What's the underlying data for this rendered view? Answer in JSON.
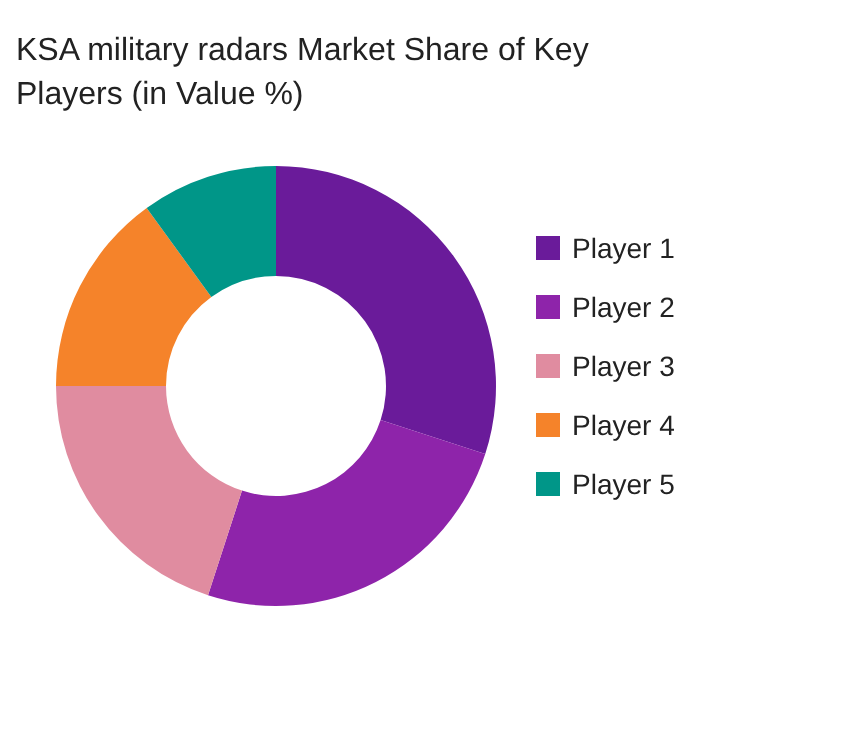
{
  "chart_data": {
    "type": "donut",
    "title": "KSA military radars Market Share of Key Players (in Value %)",
    "categories": [
      "Player 1",
      "Player 2",
      "Player 3",
      "Player 4",
      "Player 5"
    ],
    "values": [
      30,
      25,
      20,
      15,
      10
    ],
    "colors": [
      "#6a1b9a",
      "#8e24aa",
      "#e08ca0",
      "#f5832a",
      "#009688"
    ],
    "legend": "right"
  }
}
